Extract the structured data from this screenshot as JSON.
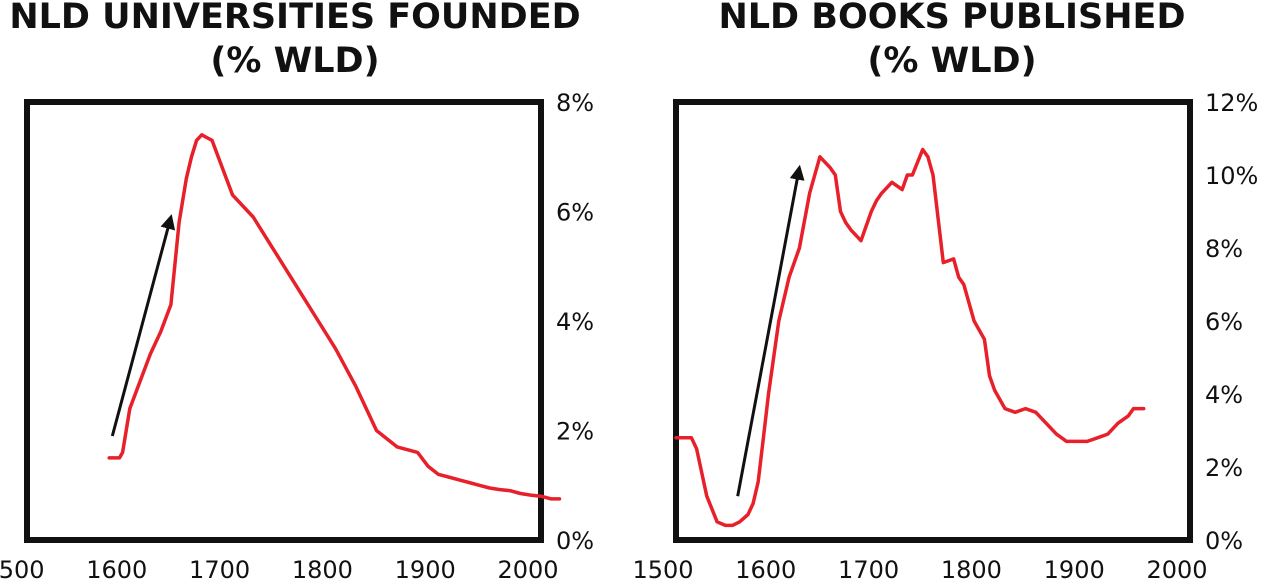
{
  "chart_data": [
    {
      "type": "line",
      "title": [
        "NLD UNIVERSITIES FOUNDED",
        "(% WLD)"
      ],
      "x_ticks": [
        "1500",
        "1600",
        "1700",
        "1800",
        "1900",
        "2000"
      ],
      "y_ticks": [
        "0%",
        "2%",
        "4%",
        "6%",
        "8%"
      ],
      "xlim": [
        1500,
        2000
      ],
      "ylim": [
        0,
        8
      ],
      "y_axis_side": "right",
      "grid": false,
      "line_color": "#e8202a",
      "arrow": {
        "from": [
          1583,
          1.9
        ],
        "to": [
          1640,
          5.9
        ]
      },
      "series": [
        {
          "x": [
            1580,
            1590,
            1593,
            1600,
            1610,
            1620,
            1630,
            1640,
            1648,
            1655,
            1660,
            1665,
            1670,
            1675,
            1680,
            1690,
            1700,
            1720,
            1740,
            1760,
            1780,
            1800,
            1820,
            1840,
            1860,
            1870,
            1880,
            1890,
            1900,
            1910,
            1920,
            1930,
            1940,
            1950,
            1960,
            1970,
            1980,
            1990,
            2000,
            2010,
            2018
          ],
          "y": [
            1.5,
            1.5,
            1.6,
            2.4,
            2.9,
            3.4,
            3.8,
            4.3,
            5.8,
            6.6,
            7.0,
            7.3,
            7.4,
            7.35,
            7.3,
            6.8,
            6.3,
            5.9,
            5.3,
            4.7,
            4.1,
            3.5,
            2.8,
            2.0,
            1.7,
            1.65,
            1.6,
            1.35,
            1.2,
            1.15,
            1.1,
            1.05,
            1.0,
            0.95,
            0.92,
            0.9,
            0.85,
            0.82,
            0.8,
            0.75,
            0.75
          ]
        }
      ]
    },
    {
      "type": "line",
      "title": [
        "NLD BOOKS PUBLISHED",
        "(% WLD)"
      ],
      "x_ticks": [
        "1500",
        "1600",
        "1700",
        "1800",
        "1900",
        "2000"
      ],
      "y_ticks": [
        "0%",
        "2%",
        "4%",
        "6%",
        "8%",
        "10%",
        "12%"
      ],
      "xlim": [
        1500,
        2000
      ],
      "ylim": [
        0,
        12
      ],
      "y_axis_side": "right",
      "grid": false,
      "line_color": "#e8202a",
      "arrow": {
        "from": [
          1560,
          1.2
        ],
        "to": [
          1620,
          10.2
        ]
      },
      "series": [
        {
          "x": [
            1500,
            1515,
            1520,
            1530,
            1540,
            1548,
            1555,
            1562,
            1570,
            1575,
            1580,
            1585,
            1590,
            1600,
            1610,
            1620,
            1630,
            1640,
            1650,
            1655,
            1660,
            1665,
            1670,
            1680,
            1690,
            1695,
            1700,
            1710,
            1720,
            1725,
            1730,
            1740,
            1745,
            1750,
            1760,
            1770,
            1775,
            1780,
            1790,
            1800,
            1805,
            1810,
            1820,
            1830,
            1840,
            1850,
            1860,
            1870,
            1880,
            1890,
            1900,
            1910,
            1920,
            1930,
            1940,
            1945,
            1955
          ],
          "y": [
            2.8,
            2.8,
            2.5,
            1.2,
            0.5,
            0.4,
            0.4,
            0.5,
            0.7,
            1.0,
            1.6,
            2.8,
            4.0,
            6.0,
            7.2,
            8.0,
            9.5,
            10.5,
            10.2,
            10.0,
            9.0,
            8.7,
            8.5,
            8.2,
            9.0,
            9.3,
            9.5,
            9.8,
            9.6,
            10.0,
            10.0,
            10.7,
            10.5,
            10.0,
            7.6,
            7.7,
            7.2,
            7.0,
            6.0,
            5.5,
            4.5,
            4.1,
            3.6,
            3.5,
            3.6,
            3.5,
            3.2,
            2.9,
            2.7,
            2.7,
            2.7,
            2.8,
            2.9,
            3.2,
            3.4,
            3.6,
            3.6
          ]
        }
      ]
    }
  ]
}
